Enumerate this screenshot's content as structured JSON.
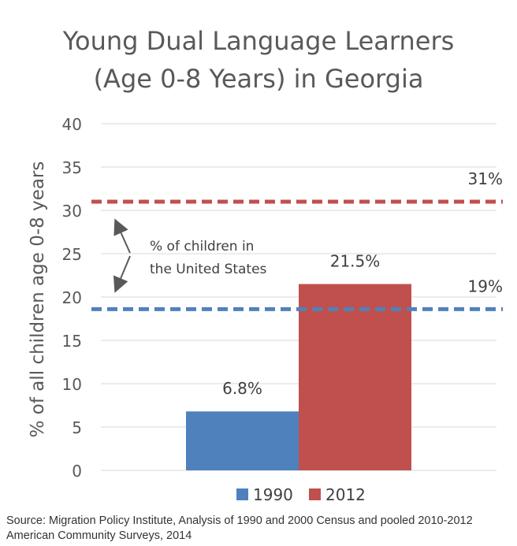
{
  "chart_data": {
    "type": "bar",
    "title_line1": "Young Dual Language Learners",
    "title_line2": "(Age 0-8 Years) in Georgia",
    "xlabel": "",
    "ylabel": "% of all children age 0-8 years",
    "ylim": [
      0,
      40
    ],
    "yticks": [
      "0",
      "5",
      "10",
      "15",
      "20",
      "25",
      "30",
      "35",
      "40"
    ],
    "grid": true,
    "legend_position": "bottom",
    "series": [
      {
        "name": "1990",
        "value": 6.8,
        "label": "6.8%",
        "color": "#4F81BD"
      },
      {
        "name": "2012",
        "value": 21.5,
        "label": "21.5%",
        "color": "#C0504D"
      }
    ],
    "reference_lines": [
      {
        "value": 31,
        "label": "31%",
        "color": "#C0504D"
      },
      {
        "value": 18.6,
        "label": "19%",
        "color": "#4F81BD"
      }
    ],
    "annotation_line1": "% of children in",
    "annotation_line2": "the United States"
  },
  "source_text": "Source: Migration Policy Institute, Analysis of 1990 and 2000 Census and pooled 2010-2012 American Community Surveys, 2014"
}
